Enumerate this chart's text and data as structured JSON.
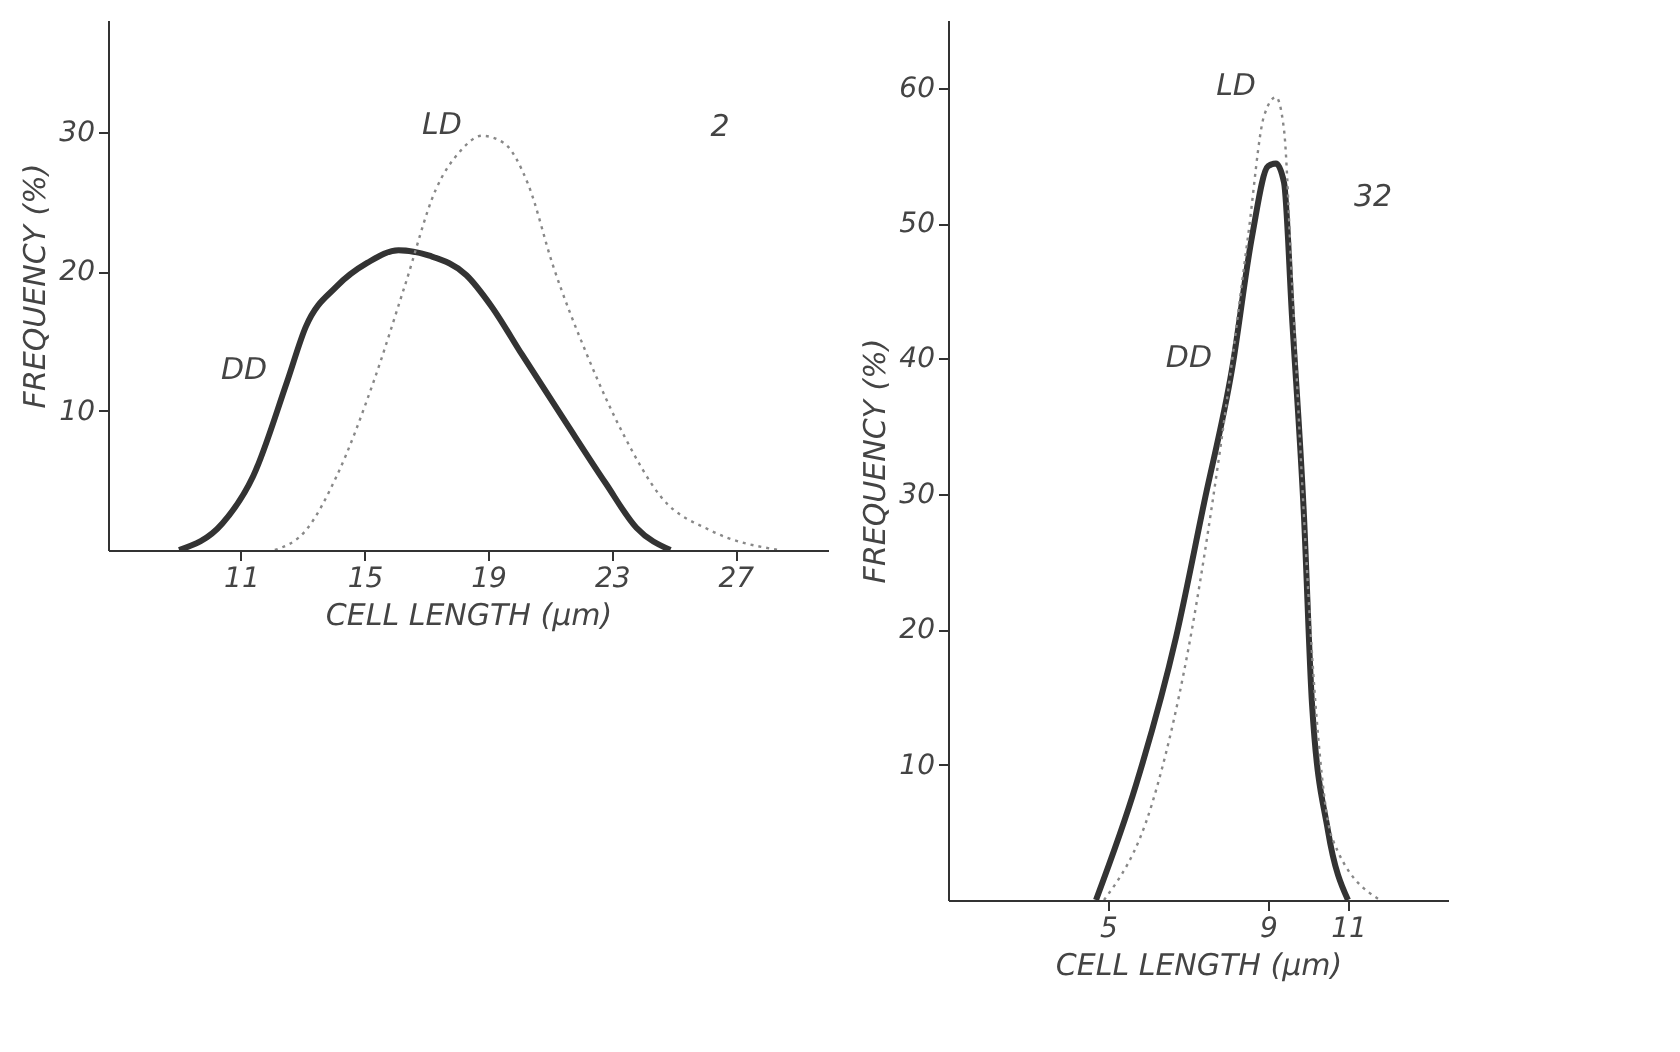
{
  "chart_data": [
    {
      "type": "line",
      "xlabel": "CELL LENGTH  (μm)",
      "ylabel": "FREQUENCY (%)",
      "annotations": [
        "2"
      ],
      "xlim": [
        6.7,
        30
      ],
      "ylim": [
        0,
        38
      ],
      "xticks": [
        11,
        15,
        19,
        23,
        27
      ],
      "yticks": [
        10,
        20,
        30
      ],
      "grid": false,
      "series": [
        {
          "name": "DD",
          "color": "#333333",
          "line_style": "solid",
          "x": [
            9.0,
            10.4,
            11.4,
            12.5,
            13.1,
            14.1,
            15.1,
            16.1,
            17.1,
            18.3,
            19.1,
            20.1,
            21.5,
            22.8,
            23.8,
            24.9
          ],
          "values": [
            0,
            1.9,
            5.3,
            12.1,
            16,
            18.9,
            20.6,
            21.5,
            21.1,
            19.7,
            17.5,
            14,
            9.2,
            4.8,
            1.6,
            0
          ]
        },
        {
          "name": "LD",
          "color": "#888888",
          "line_style": "dotted",
          "x": [
            12.1,
            13.1,
            14.1,
            15.3,
            16.3,
            17.3,
            18.1,
            18.8,
            19.5,
            20.3,
            21.1,
            22.2,
            23.4,
            24.6,
            26.2,
            28.4
          ],
          "values": [
            0,
            1.4,
            5.3,
            12.1,
            18.9,
            25.8,
            28.6,
            29.7,
            29.2,
            26.2,
            20.4,
            14,
            8.2,
            3.8,
            1.4,
            0
          ]
        }
      ]
    },
    {
      "type": "line",
      "xlabel": "CELL LENGTH  (μm)",
      "ylabel": "FREQUENCY (%)",
      "annotations": [
        "32"
      ],
      "xlim": [
        1,
        13.5
      ],
      "ylim": [
        0,
        65
      ],
      "xticks": [
        5,
        9,
        11
      ],
      "yticks": [
        10,
        20,
        30,
        40,
        50,
        60
      ],
      "grid": false,
      "series": [
        {
          "name": "DD",
          "color": "#333333",
          "line_style": "solid",
          "x": [
            4.7,
            5.7,
            6.7,
            7.4,
            8.1,
            8.6,
            9.0,
            9.2,
            9.4,
            9.6,
            9.9,
            10.1,
            10.5,
            11.0
          ],
          "values": [
            0,
            8.5,
            19.4,
            29.3,
            39.2,
            49,
            54.2,
            54.4,
            53,
            43.1,
            28.3,
            14.5,
            5.1,
            0
          ]
        },
        {
          "name": "LD",
          "color": "#888888",
          "line_style": "dotted",
          "x": [
            4.9,
            6.1,
            7.0,
            7.8,
            8.5,
            8.9,
            9.2,
            9.4,
            9.6,
            9.9,
            10.2,
            10.6,
            11.8
          ],
          "values": [
            0,
            7.1,
            18.4,
            33.2,
            49,
            57.9,
            59.3,
            56.9,
            45.6,
            28.3,
            14,
            4.6,
            0
          ]
        }
      ]
    }
  ]
}
